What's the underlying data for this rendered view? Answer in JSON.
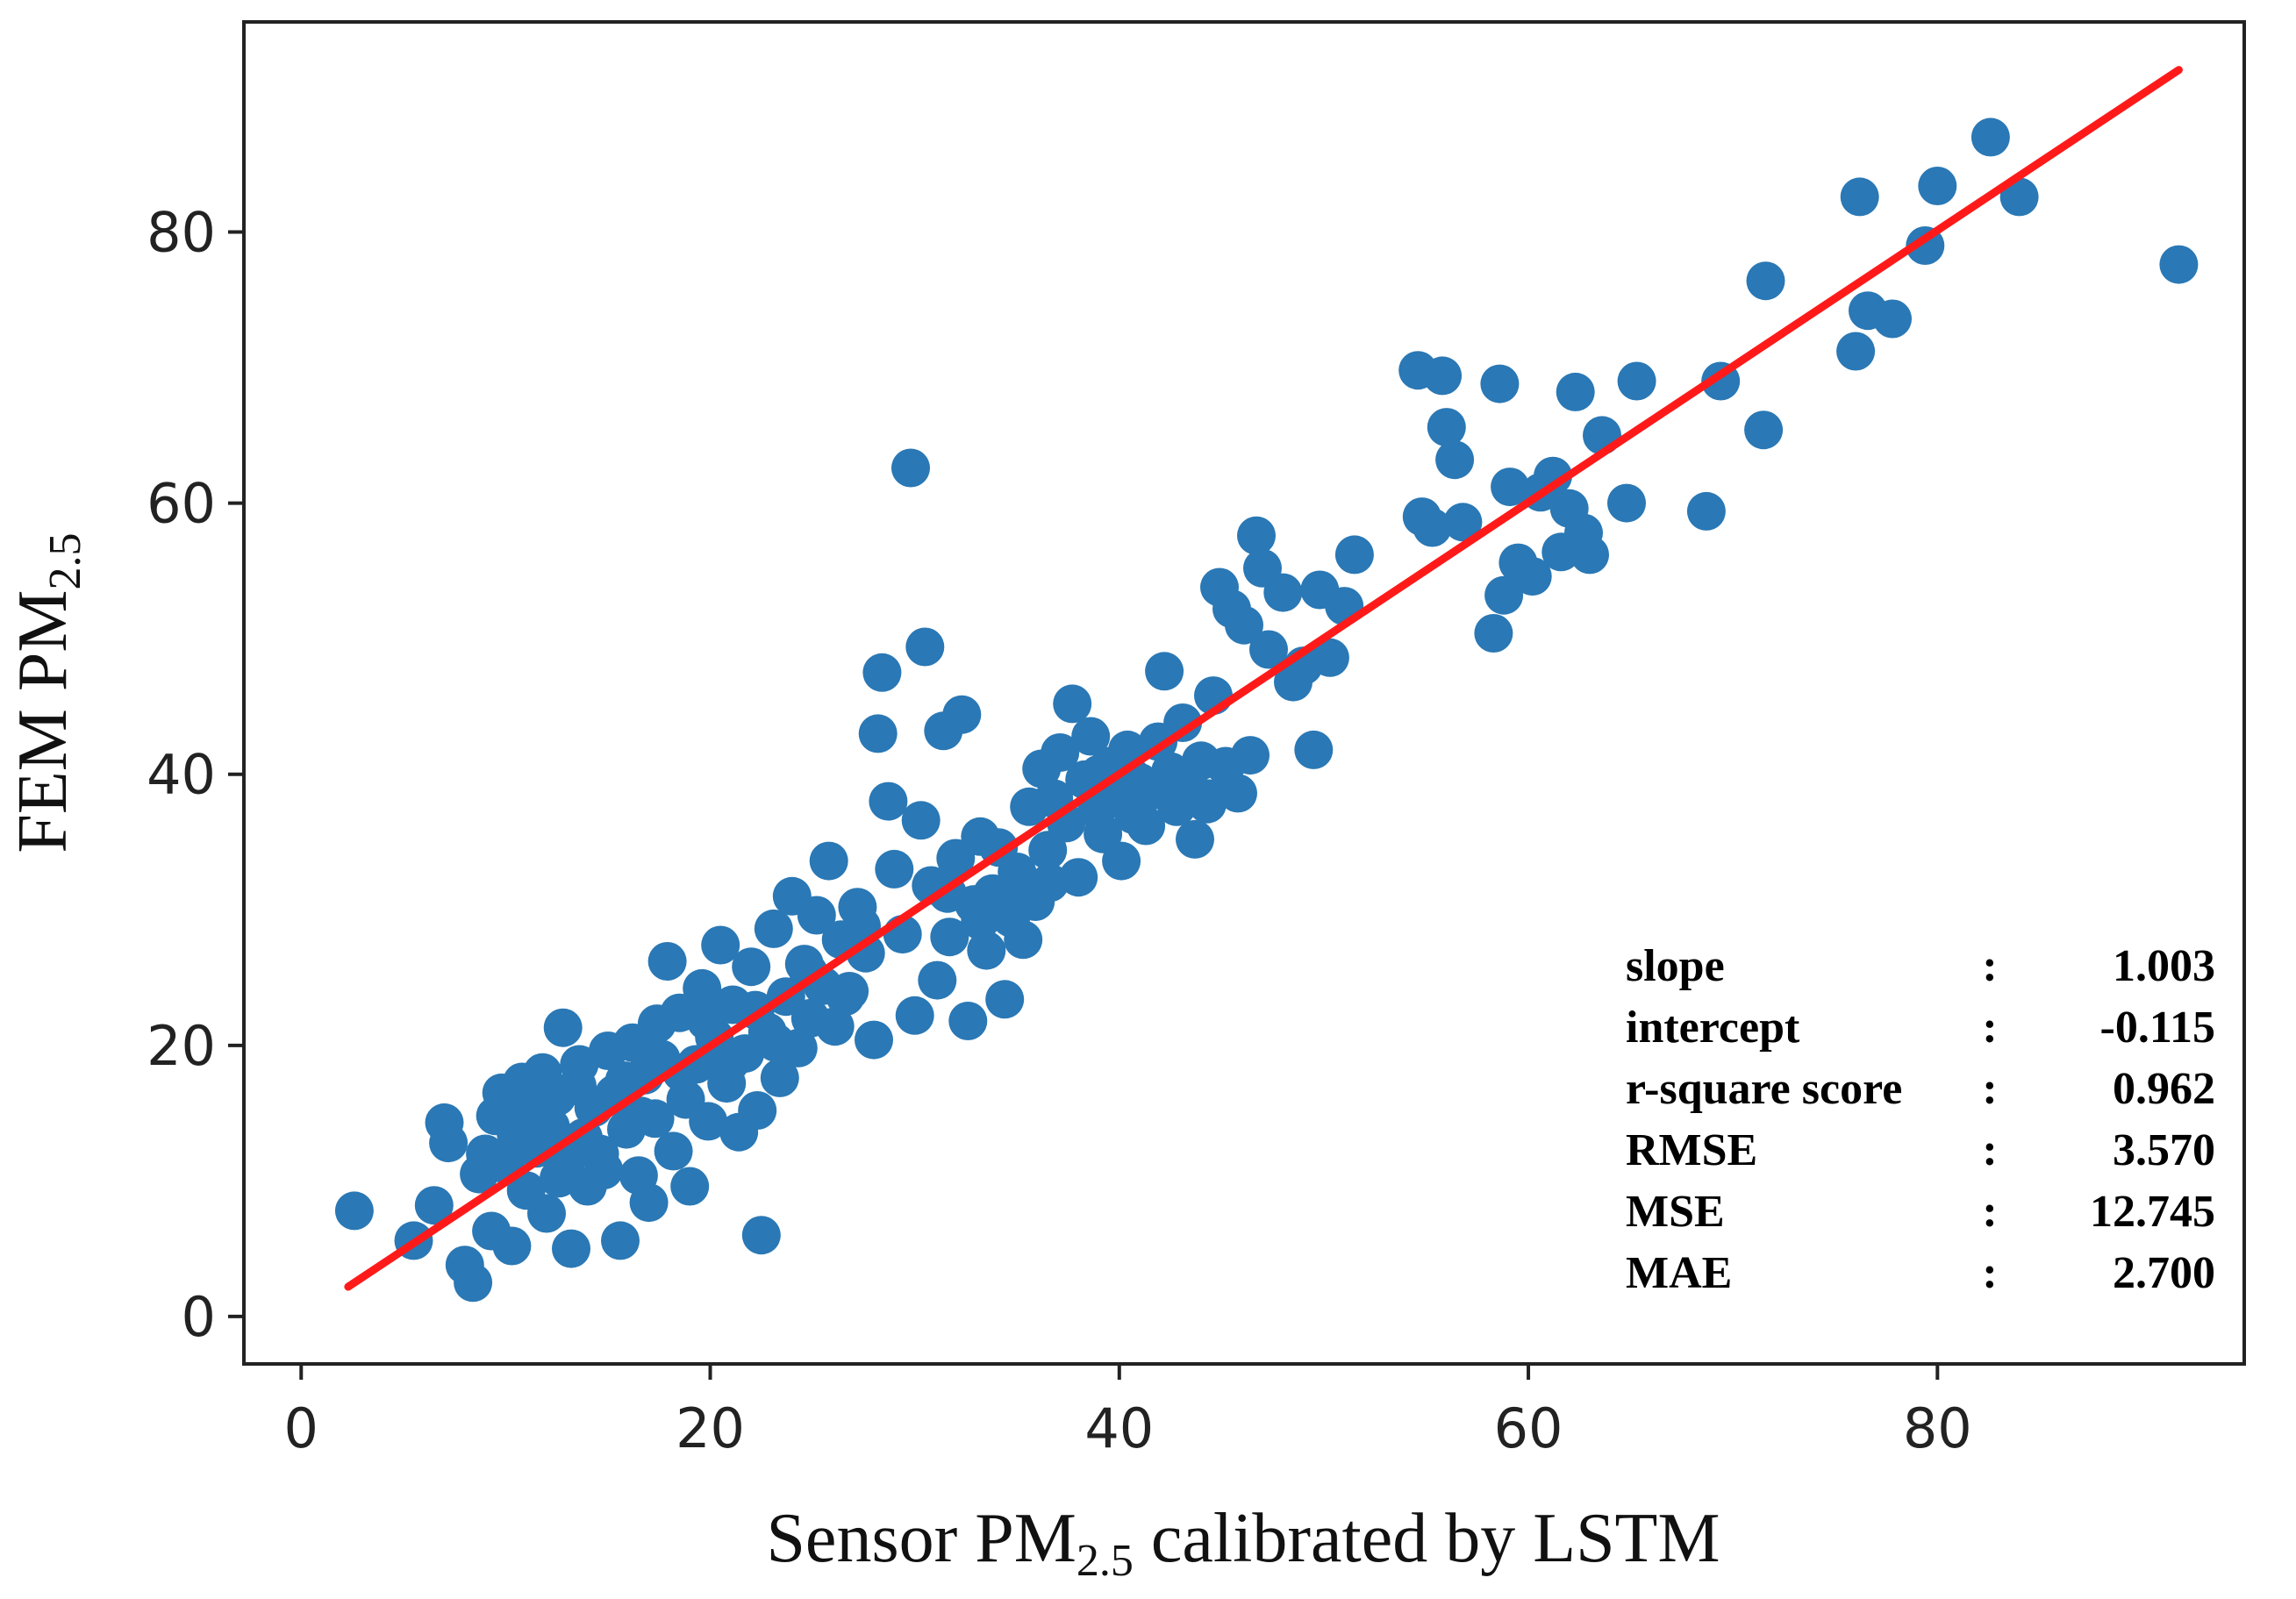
{
  "chart_data": {
    "type": "scatter",
    "xlabel": {
      "pre": "Sensor PM",
      "sub": "2.5",
      "post": " calibrated by LSTM"
    },
    "ylabel": {
      "pre": "FEM PM",
      "sub": "2.5"
    },
    "xlim": [
      -2.8,
      95
    ],
    "ylim": [
      -3.5,
      95.5
    ],
    "xticks": [
      "0",
      "20",
      "40",
      "60",
      "80"
    ],
    "yticks": [
      "0",
      "20",
      "40",
      "60",
      "80"
    ],
    "grid": false,
    "colors": {
      "points": "#2a78b5",
      "fit_line": "#ff1a1a",
      "axes": "#222222"
    },
    "fit_line": {
      "slope": 1.003,
      "intercept": -0.115,
      "x_range": [
        2.3,
        91.8
      ]
    },
    "stats": [
      {
        "label": "slope",
        "sep": ":",
        "value": "1.003"
      },
      {
        "label": "intercept",
        "sep": ":",
        "value": "-0.115"
      },
      {
        "label": "r-square score",
        "sep": ":",
        "value": "0.962"
      },
      {
        "label": "RMSE",
        "sep": ":",
        "value": "3.570"
      },
      {
        "label": "MSE",
        "sep": ":",
        "value": "12.745"
      },
      {
        "label": "MAE",
        "sep": ":",
        "value": "2.700"
      }
    ],
    "points": [
      [
        2.6,
        7.8
      ],
      [
        5.5,
        5.6
      ],
      [
        6.5,
        8.2
      ],
      [
        7.0,
        14.3
      ],
      [
        7.2,
        12.8
      ],
      [
        8.0,
        3.8
      ],
      [
        8.4,
        2.5
      ],
      [
        8.7,
        10.5
      ],
      [
        9.0,
        12.0
      ],
      [
        9.3,
        6.3
      ],
      [
        9.5,
        14.8
      ],
      [
        9.8,
        16.5
      ],
      [
        10.0,
        11.2
      ],
      [
        10.3,
        5.2
      ],
      [
        10.5,
        13.5
      ],
      [
        10.8,
        17.3
      ],
      [
        11.0,
        9.3
      ],
      [
        11.2,
        15.2
      ],
      [
        11.5,
        12.4
      ],
      [
        11.8,
        18.0
      ],
      [
        12.0,
        7.6
      ],
      [
        12.2,
        14.0
      ],
      [
        12.5,
        16.2
      ],
      [
        12.8,
        21.3
      ],
      [
        13.0,
        11.6
      ],
      [
        13.2,
        5.0
      ],
      [
        13.5,
        17.0
      ],
      [
        13.8,
        13.2
      ],
      [
        14.0,
        9.6
      ],
      [
        14.3,
        15.4
      ],
      [
        14.6,
        12.0
      ],
      [
        15.0,
        19.6
      ],
      [
        15.3,
        16.4
      ],
      [
        15.6,
        5.6
      ],
      [
        15.9,
        13.8
      ],
      [
        16.2,
        20.2
      ],
      [
        16.5,
        10.4
      ],
      [
        16.8,
        17.8
      ],
      [
        17.0,
        8.4
      ],
      [
        17.3,
        14.6
      ],
      [
        17.6,
        19.0
      ],
      [
        17.9,
        26.2
      ],
      [
        18.2,
        12.2
      ],
      [
        18.5,
        22.4
      ],
      [
        18.8,
        16.0
      ],
      [
        19.0,
        9.6
      ],
      [
        19.3,
        18.6
      ],
      [
        19.6,
        24.2
      ],
      [
        19.9,
        14.4
      ],
      [
        20.2,
        20.6
      ],
      [
        20.5,
        27.4
      ],
      [
        20.8,
        17.2
      ],
      [
        21.1,
        23.0
      ],
      [
        21.4,
        13.6
      ],
      [
        21.7,
        19.4
      ],
      [
        22.0,
        25.8
      ],
      [
        22.3,
        15.2
      ],
      [
        22.5,
        6.0
      ],
      [
        22.8,
        21.0
      ],
      [
        23.1,
        28.6
      ],
      [
        23.4,
        17.6
      ],
      [
        23.7,
        23.6
      ],
      [
        24.0,
        31.0
      ],
      [
        24.3,
        19.8
      ],
      [
        24.6,
        26.0
      ],
      [
        24.9,
        22.0
      ],
      [
        25.2,
        29.6
      ],
      [
        25.5,
        24.4
      ],
      [
        25.8,
        33.6
      ],
      [
        26.1,
        21.4
      ],
      [
        26.4,
        27.8
      ],
      [
        26.8,
        24.0
      ],
      [
        27.2,
        30.2
      ],
      [
        27.6,
        26.8
      ],
      [
        28.0,
        20.4
      ],
      [
        28.2,
        43.0
      ],
      [
        28.4,
        47.5
      ],
      [
        28.7,
        38.0
      ],
      [
        29.0,
        33.0
      ],
      [
        29.4,
        28.2
      ],
      [
        29.8,
        62.6
      ],
      [
        30.0,
        22.2
      ],
      [
        30.3,
        36.6
      ],
      [
        30.5,
        49.4
      ],
      [
        30.8,
        31.8
      ],
      [
        31.1,
        24.8
      ],
      [
        31.4,
        43.2
      ],
      [
        31.7,
        28.0
      ],
      [
        32.0,
        33.8
      ],
      [
        32.3,
        44.4
      ],
      [
        32.6,
        21.8
      ],
      [
        32.9,
        30.4
      ],
      [
        33.2,
        35.4
      ],
      [
        33.5,
        27.0
      ],
      [
        33.8,
        31.2
      ],
      [
        34.1,
        34.6
      ],
      [
        34.4,
        23.4
      ],
      [
        34.7,
        29.4
      ],
      [
        35.0,
        32.8
      ],
      [
        35.3,
        27.8
      ],
      [
        35.6,
        37.6
      ],
      [
        35.9,
        30.6
      ],
      [
        36.2,
        40.4
      ],
      [
        36.5,
        34.4
      ],
      [
        36.8,
        38.2
      ],
      [
        37.1,
        41.6
      ],
      [
        37.4,
        36.4
      ],
      [
        37.7,
        45.2
      ],
      [
        38.0,
        32.4
      ],
      [
        38.3,
        39.6
      ],
      [
        38.6,
        42.8
      ],
      [
        38.9,
        37.4
      ],
      [
        39.2,
        35.6
      ],
      [
        39.5,
        40.6
      ],
      [
        39.8,
        38.4
      ],
      [
        40.1,
        33.6
      ],
      [
        40.4,
        41.8
      ],
      [
        40.7,
        37.0
      ],
      [
        41.0,
        39.4
      ],
      [
        41.3,
        36.2
      ],
      [
        41.6,
        38.8
      ],
      [
        41.9,
        42.4
      ],
      [
        42.2,
        47.6
      ],
      [
        42.5,
        40.2
      ],
      [
        42.8,
        37.6
      ],
      [
        43.1,
        43.8
      ],
      [
        43.4,
        39.2
      ],
      [
        43.7,
        35.2
      ],
      [
        44.0,
        41.0
      ],
      [
        44.3,
        37.8
      ],
      [
        44.6,
        45.8
      ],
      [
        44.9,
        53.8
      ],
      [
        45.2,
        40.6
      ],
      [
        45.5,
        52.2
      ],
      [
        45.8,
        38.6
      ],
      [
        46.1,
        51.0
      ],
      [
        46.4,
        41.4
      ],
      [
        46.7,
        57.6
      ],
      [
        47.0,
        55.2
      ],
      [
        47.3,
        49.2
      ],
      [
        48.0,
        53.4
      ],
      [
        48.5,
        46.8
      ],
      [
        49.0,
        48.0
      ],
      [
        49.5,
        41.8
      ],
      [
        49.8,
        53.6
      ],
      [
        50.3,
        48.6
      ],
      [
        51.0,
        52.4
      ],
      [
        51.5,
        56.2
      ],
      [
        54.6,
        69.8
      ],
      [
        54.8,
        59.0
      ],
      [
        55.3,
        58.2
      ],
      [
        55.8,
        69.4
      ],
      [
        56.0,
        65.6
      ],
      [
        56.4,
        63.2
      ],
      [
        56.8,
        58.6
      ],
      [
        58.3,
        50.4
      ],
      [
        58.6,
        68.8
      ],
      [
        58.8,
        53.2
      ],
      [
        59.1,
        61.2
      ],
      [
        59.5,
        55.6
      ],
      [
        60.2,
        54.6
      ],
      [
        60.6,
        60.8
      ],
      [
        61.2,
        62.0
      ],
      [
        61.6,
        56.4
      ],
      [
        62.0,
        59.6
      ],
      [
        62.3,
        68.2
      ],
      [
        62.7,
        57.8
      ],
      [
        63.0,
        56.2
      ],
      [
        63.6,
        65.0
      ],
      [
        64.8,
        60.0
      ],
      [
        65.3,
        69.0
      ],
      [
        68.7,
        59.4
      ],
      [
        69.4,
        69.0
      ],
      [
        71.5,
        65.4
      ],
      [
        71.6,
        76.4
      ],
      [
        76.0,
        71.2
      ],
      [
        76.2,
        82.6
      ],
      [
        76.6,
        74.2
      ],
      [
        77.8,
        73.6
      ],
      [
        79.4,
        79.0
      ],
      [
        80.0,
        83.4
      ],
      [
        82.6,
        87.0
      ],
      [
        84.0,
        82.6
      ],
      [
        91.8,
        77.6
      ],
      [
        10.2,
        15.8
      ],
      [
        11.4,
        13.4
      ],
      [
        12.6,
        10.2
      ],
      [
        13.6,
        18.6
      ],
      [
        14.8,
        10.8
      ],
      [
        15.8,
        17.4
      ],
      [
        16.6,
        14.8
      ],
      [
        17.4,
        21.6
      ],
      [
        18.6,
        18.0
      ],
      [
        19.8,
        21.8
      ],
      [
        21.0,
        18.8
      ],
      [
        22.2,
        22.6
      ],
      [
        23.2,
        20.2
      ],
      [
        24.8,
        25.4
      ],
      [
        26.6,
        23.6
      ],
      [
        27.4,
        28.8
      ],
      [
        31.6,
        31.2
      ],
      [
        33.2,
        29.2
      ],
      [
        34.8,
        31.6
      ],
      [
        36.6,
        32.0
      ],
      [
        39.0,
        40.0
      ],
      [
        40.6,
        39.8
      ],
      [
        43.4,
        40.0
      ],
      [
        44.4,
        38.2
      ]
    ]
  }
}
